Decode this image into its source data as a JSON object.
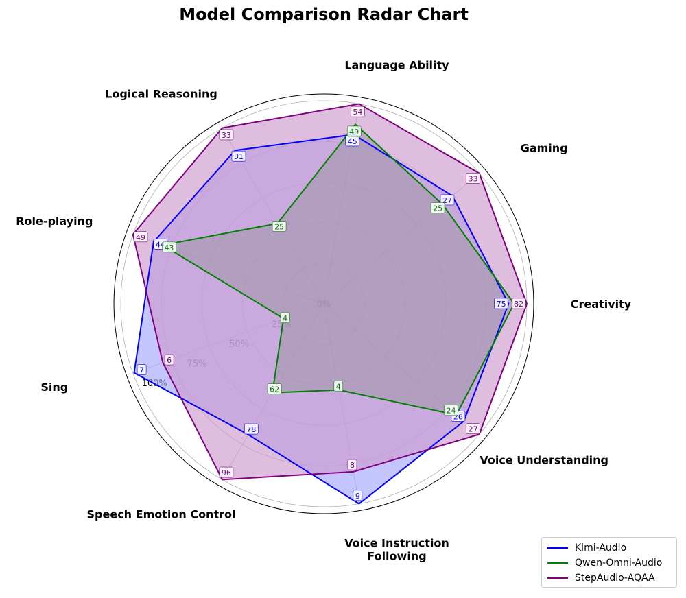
{
  "chart_data": {
    "type": "radar",
    "title": "Model Comparison Radar Chart",
    "categories": [
      "Creativity",
      "Gaming",
      "Language Ability",
      "Logical Reasoning",
      "Role-playing",
      "Sing",
      "Speech Emotion Control",
      "Voice Instruction\nFollowing",
      "Voice Understanding"
    ],
    "radial_ticks": [
      "0%",
      "25%",
      "50%",
      "75%",
      "100%"
    ],
    "rlim": [
      0,
      100
    ],
    "series": [
      {
        "name": "Kimi-Audio",
        "color": "#0000ff",
        "fill": "#a8a8ff",
        "values": [
          91.0,
          82.7,
          84.7,
          87.3,
          89.2,
          99.4,
          74.4,
          100.0,
          90.0
        ],
        "labels": [
          "75",
          "27",
          "45",
          "31",
          "44",
          "7",
          "78",
          "9",
          "26"
        ]
      },
      {
        "name": "Qwen-Omni-Audio",
        "color": "#008000",
        "fill": "#2e7d32",
        "values": [
          93.7,
          76.3,
          89.7,
          45.7,
          84.5,
          21.1,
          50.6,
          43.1,
          85.2
        ],
        "labels": [
          "",
          "25",
          "49",
          "25",
          "43",
          "4",
          "62",
          "4",
          "24"
        ]
      },
      {
        "name": "StepAudio-AQAA",
        "color": "#800080",
        "fill": "#cc99cc",
        "values": [
          100.0,
          100.0,
          100.0,
          100.0,
          100.0,
          84.4,
          100.0,
          84.0,
          100.0
        ],
        "labels": [
          "82",
          "33",
          "54",
          "33",
          "49",
          "6",
          "96",
          "8",
          "27"
        ]
      }
    ],
    "legend_position": "lower-right"
  }
}
